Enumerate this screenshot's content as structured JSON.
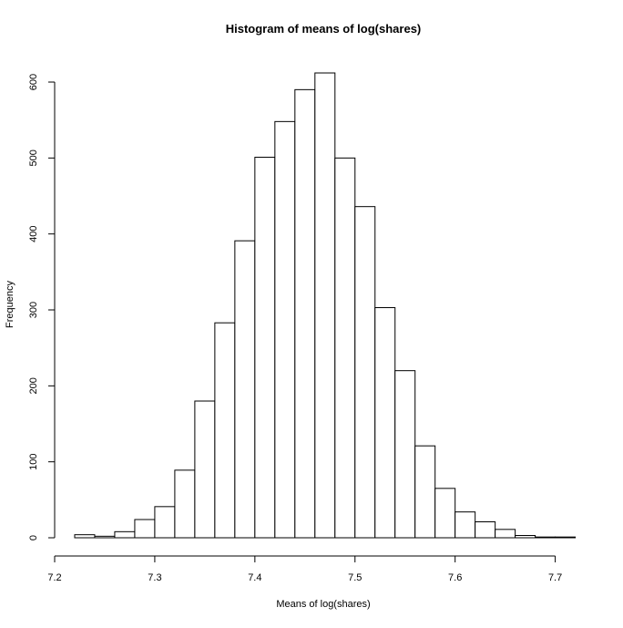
{
  "chart_data": {
    "type": "bar",
    "title": "Histogram of means of log(shares)",
    "xlabel": "Means of log(shares)",
    "ylabel": "Frequency",
    "xlim": [
      7.2,
      7.72
    ],
    "ylim": [
      0,
      620
    ],
    "x_ticks": [
      7.2,
      7.3,
      7.4,
      7.5,
      7.6,
      7.7
    ],
    "x_tick_labels": [
      "7.2",
      "7.3",
      "7.4",
      "7.5",
      "7.6",
      "7.7"
    ],
    "y_ticks": [
      0,
      100,
      200,
      300,
      400,
      500,
      600
    ],
    "y_tick_labels": [
      "0",
      "100",
      "200",
      "300",
      "400",
      "500",
      "600"
    ],
    "bin_width": 0.02,
    "bins": [
      {
        "start": 7.22,
        "end": 7.24,
        "count": 4
      },
      {
        "start": 7.24,
        "end": 7.26,
        "count": 2
      },
      {
        "start": 7.26,
        "end": 7.28,
        "count": 8
      },
      {
        "start": 7.28,
        "end": 7.3,
        "count": 24
      },
      {
        "start": 7.3,
        "end": 7.32,
        "count": 41
      },
      {
        "start": 7.32,
        "end": 7.34,
        "count": 89
      },
      {
        "start": 7.34,
        "end": 7.36,
        "count": 180
      },
      {
        "start": 7.36,
        "end": 7.38,
        "count": 283
      },
      {
        "start": 7.38,
        "end": 7.4,
        "count": 391
      },
      {
        "start": 7.4,
        "end": 7.42,
        "count": 501
      },
      {
        "start": 7.42,
        "end": 7.44,
        "count": 548
      },
      {
        "start": 7.44,
        "end": 7.46,
        "count": 590
      },
      {
        "start": 7.46,
        "end": 7.48,
        "count": 612
      },
      {
        "start": 7.48,
        "end": 7.5,
        "count": 500
      },
      {
        "start": 7.5,
        "end": 7.52,
        "count": 436
      },
      {
        "start": 7.52,
        "end": 7.54,
        "count": 303
      },
      {
        "start": 7.54,
        "end": 7.56,
        "count": 220
      },
      {
        "start": 7.56,
        "end": 7.58,
        "count": 121
      },
      {
        "start": 7.58,
        "end": 7.6,
        "count": 65
      },
      {
        "start": 7.6,
        "end": 7.62,
        "count": 34
      },
      {
        "start": 7.62,
        "end": 7.64,
        "count": 21
      },
      {
        "start": 7.64,
        "end": 7.66,
        "count": 11
      },
      {
        "start": 7.66,
        "end": 7.68,
        "count": 3
      },
      {
        "start": 7.68,
        "end": 7.7,
        "count": 1
      },
      {
        "start": 7.7,
        "end": 7.72,
        "count": 1
      }
    ],
    "bar_fill": "#ffffff",
    "bar_stroke": "#000000",
    "grid": false,
    "legend": "none"
  }
}
